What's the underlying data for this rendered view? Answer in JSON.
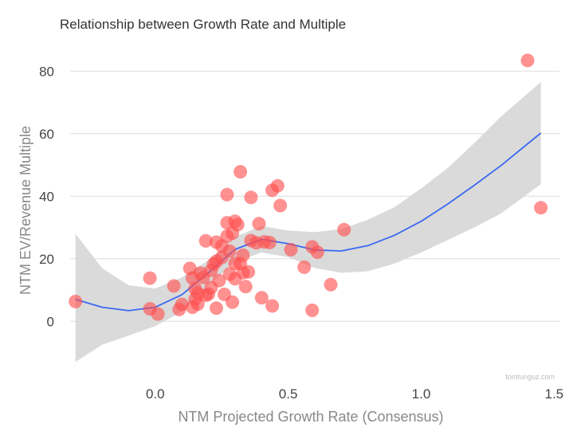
{
  "chart_data": {
    "type": "scatter",
    "title": "Relationship between Growth Rate and Multiple",
    "xlabel": "NTM Projected Growth Rate (Consensus)",
    "ylabel": "NTM EV/Revenue Multiple",
    "xlim": [
      -0.32,
      1.52
    ],
    "ylim": [
      -17,
      90
    ],
    "x_ticks": [
      0.0,
      0.5,
      1.0,
      1.5
    ],
    "x_tick_labels": [
      "0.0",
      "0.5",
      "1.0",
      "1.5"
    ],
    "y_ticks": [
      0,
      20,
      40,
      60,
      80
    ],
    "y_tick_labels": [
      "0",
      "20",
      "40",
      "60",
      "80"
    ],
    "grid": "horizontal",
    "watermark": "tomtunguz.com",
    "colors": {
      "points": "#ff4d4d",
      "line": "#3b68f2",
      "band": "#d6d6d6",
      "grid": "#dddddd"
    },
    "series": [
      {
        "name": "companies",
        "points": [
          {
            "x": -0.3,
            "y": 6.3
          },
          {
            "x": -0.02,
            "y": 13.8
          },
          {
            "x": -0.02,
            "y": 4.0
          },
          {
            "x": 0.01,
            "y": 2.3
          },
          {
            "x": 0.07,
            "y": 11.3
          },
          {
            "x": 0.09,
            "y": 3.8
          },
          {
            "x": 0.1,
            "y": 5.4
          },
          {
            "x": 0.13,
            "y": 16.9
          },
          {
            "x": 0.14,
            "y": 13.8
          },
          {
            "x": 0.14,
            "y": 4.5
          },
          {
            "x": 0.15,
            "y": 7.1
          },
          {
            "x": 0.15,
            "y": 10.5
          },
          {
            "x": 0.16,
            "y": 9.0
          },
          {
            "x": 0.16,
            "y": 5.5
          },
          {
            "x": 0.17,
            "y": 15.4
          },
          {
            "x": 0.18,
            "y": 14.0
          },
          {
            "x": 0.19,
            "y": 8.3
          },
          {
            "x": 0.2,
            "y": 8.7
          },
          {
            "x": 0.19,
            "y": 25.7
          },
          {
            "x": 0.21,
            "y": 10.8
          },
          {
            "x": 0.21,
            "y": 16.3
          },
          {
            "x": 0.22,
            "y": 18.3
          },
          {
            "x": 0.23,
            "y": 19.2
          },
          {
            "x": 0.23,
            "y": 25.3
          },
          {
            "x": 0.23,
            "y": 4.2
          },
          {
            "x": 0.24,
            "y": 13.0
          },
          {
            "x": 0.25,
            "y": 20.4
          },
          {
            "x": 0.25,
            "y": 24.1
          },
          {
            "x": 0.26,
            "y": 8.6
          },
          {
            "x": 0.27,
            "y": 27.2
          },
          {
            "x": 0.27,
            "y": 31.5
          },
          {
            "x": 0.27,
            "y": 40.5
          },
          {
            "x": 0.28,
            "y": 22.4
          },
          {
            "x": 0.28,
            "y": 15.1
          },
          {
            "x": 0.29,
            "y": 28.2
          },
          {
            "x": 0.29,
            "y": 6.1
          },
          {
            "x": 0.3,
            "y": 13.6
          },
          {
            "x": 0.3,
            "y": 18.5
          },
          {
            "x": 0.3,
            "y": 32.0
          },
          {
            "x": 0.31,
            "y": 30.9
          },
          {
            "x": 0.32,
            "y": 47.8
          },
          {
            "x": 0.32,
            "y": 18.4
          },
          {
            "x": 0.33,
            "y": 15.5
          },
          {
            "x": 0.33,
            "y": 21.1
          },
          {
            "x": 0.34,
            "y": 11.1
          },
          {
            "x": 0.35,
            "y": 15.8
          },
          {
            "x": 0.36,
            "y": 39.6
          },
          {
            "x": 0.36,
            "y": 25.8
          },
          {
            "x": 0.38,
            "y": 25.1
          },
          {
            "x": 0.39,
            "y": 31.2
          },
          {
            "x": 0.4,
            "y": 7.5
          },
          {
            "x": 0.41,
            "y": 25.4
          },
          {
            "x": 0.43,
            "y": 25.2
          },
          {
            "x": 0.44,
            "y": 41.9
          },
          {
            "x": 0.44,
            "y": 4.9
          },
          {
            "x": 0.46,
            "y": 43.3
          },
          {
            "x": 0.47,
            "y": 37.0
          },
          {
            "x": 0.51,
            "y": 22.9
          },
          {
            "x": 0.56,
            "y": 17.3
          },
          {
            "x": 0.59,
            "y": 23.8
          },
          {
            "x": 0.59,
            "y": 3.5
          },
          {
            "x": 0.61,
            "y": 22.1
          },
          {
            "x": 0.66,
            "y": 11.7
          },
          {
            "x": 0.71,
            "y": 29.3
          },
          {
            "x": 1.4,
            "y": 83.4
          },
          {
            "x": 1.45,
            "y": 36.3
          }
        ]
      },
      {
        "name": "fit",
        "line": [
          {
            "x": -0.3,
            "y": 7.0,
            "lo": -13.0,
            "hi": 28.0
          },
          {
            "x": -0.2,
            "y": 4.5,
            "lo": -7.5,
            "hi": 17.0
          },
          {
            "x": -0.1,
            "y": 3.4,
            "lo": -4.6,
            "hi": 11.5
          },
          {
            "x": 0.0,
            "y": 4.5,
            "lo": -1.5,
            "hi": 10.5
          },
          {
            "x": 0.1,
            "y": 8.5,
            "lo": 3.0,
            "hi": 14.0
          },
          {
            "x": 0.2,
            "y": 15.5,
            "lo": 11.5,
            "hi": 19.5
          },
          {
            "x": 0.3,
            "y": 23.0,
            "lo": 19.0,
            "hi": 27.0
          },
          {
            "x": 0.4,
            "y": 26.2,
            "lo": 22.0,
            "hi": 30.5
          },
          {
            "x": 0.5,
            "y": 24.8,
            "lo": 20.5,
            "hi": 29.0
          },
          {
            "x": 0.6,
            "y": 22.8,
            "lo": 17.0,
            "hi": 28.5
          },
          {
            "x": 0.7,
            "y": 22.5,
            "lo": 15.5,
            "hi": 29.5
          },
          {
            "x": 0.8,
            "y": 24.2,
            "lo": 16.0,
            "hi": 32.5
          },
          {
            "x": 0.9,
            "y": 27.5,
            "lo": 18.5,
            "hi": 36.5
          },
          {
            "x": 1.0,
            "y": 32.0,
            "lo": 22.0,
            "hi": 42.5
          },
          {
            "x": 1.1,
            "y": 37.5,
            "lo": 26.0,
            "hi": 49.0
          },
          {
            "x": 1.2,
            "y": 43.5,
            "lo": 30.0,
            "hi": 57.0
          },
          {
            "x": 1.3,
            "y": 49.8,
            "lo": 34.5,
            "hi": 65.5
          },
          {
            "x": 1.45,
            "y": 60.2,
            "lo": 43.8,
            "hi": 76.5
          }
        ]
      }
    ]
  }
}
